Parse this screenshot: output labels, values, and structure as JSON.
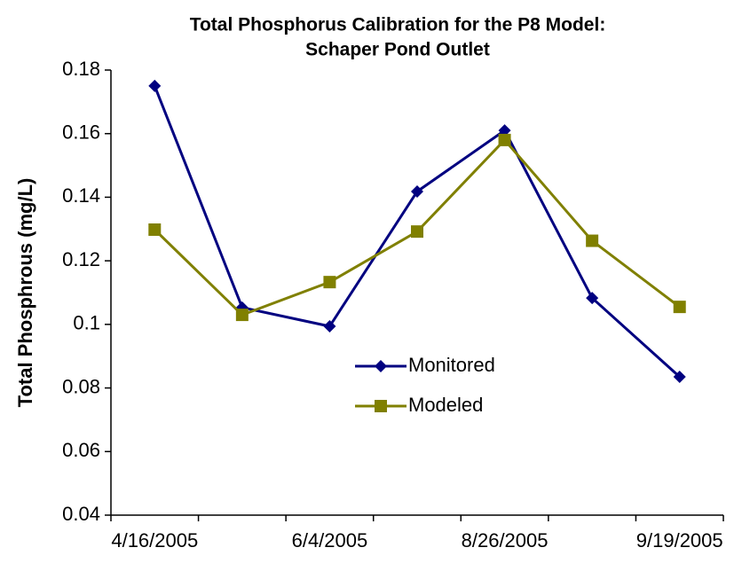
{
  "chart_data": {
    "type": "line",
    "title": [
      "Total Phosphorus Calibration for the P8 Model:",
      "Schaper Pond Outlet"
    ],
    "y_label": "Total Phosphrous (mg/L)",
    "categories": [
      "4/16/2005",
      null,
      "6/4/2005",
      null,
      "8/26/2005",
      null,
      "9/19/2005"
    ],
    "series": [
      {
        "name": "Monitored",
        "color": "#000080",
        "marker": "diamond",
        "values": [
          0.175,
          0.1053,
          0.0994,
          0.1418,
          0.161,
          0.1083,
          0.0835
        ]
      },
      {
        "name": "Modeled",
        "color": "#808000",
        "marker": "square",
        "values": [
          0.1298,
          0.103,
          0.1133,
          0.1292,
          0.158,
          0.1263,
          0.1055
        ]
      }
    ],
    "ylim": [
      0.04,
      0.18
    ],
    "yticks": [
      0.04,
      0.06,
      0.08,
      0.1,
      0.12,
      0.14,
      0.16,
      0.18
    ],
    "grid": false,
    "legend": "center"
  }
}
